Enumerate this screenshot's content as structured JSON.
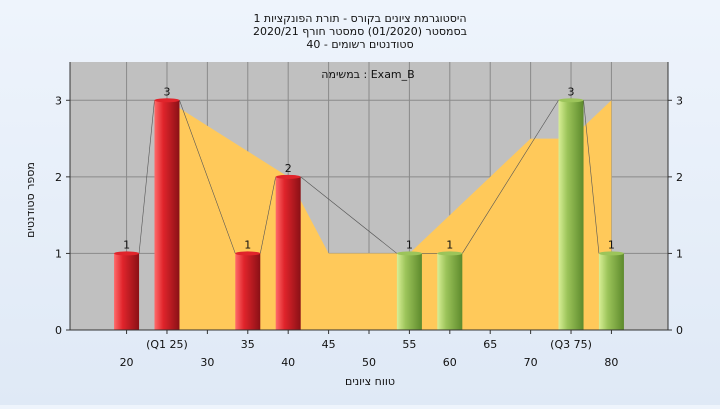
{
  "chart_data": {
    "type": "bar",
    "title_lines": [
      "היסטוגרמת ציונים בקורס - תורת הפונקציות 1",
      "בסמסטר  (01/2020)  סמסטר חורף  2020/21",
      "סטודנטים רשומים - 40"
    ],
    "annotation": "במשימה : Exam_B",
    "xlabel": "טווח ציונים",
    "ylabel": "מספר סטודנטים",
    "ylim": [
      0,
      3.5
    ],
    "yticks": [
      0,
      1,
      2,
      3
    ],
    "xlim": [
      13,
      87
    ],
    "xticks": [
      {
        "value": 20,
        "label": "20",
        "row": 1
      },
      {
        "value": 25,
        "label": "(Q1 25)",
        "row": 0
      },
      {
        "value": 30,
        "label": "30",
        "row": 1
      },
      {
        "value": 35,
        "label": "35",
        "row": 0
      },
      {
        "value": 40,
        "label": "40",
        "row": 1
      },
      {
        "value": 45,
        "label": "45",
        "row": 0
      },
      {
        "value": 50,
        "label": "50",
        "row": 1
      },
      {
        "value": 55,
        "label": "55",
        "row": 0
      },
      {
        "value": 60,
        "label": "60",
        "row": 1
      },
      {
        "value": 65,
        "label": "65",
        "row": 0
      },
      {
        "value": 70,
        "label": "70",
        "row": 1
      },
      {
        "value": 75,
        "label": "(Q3 75)",
        "row": 0
      },
      {
        "value": 80,
        "label": "80",
        "row": 1
      }
    ],
    "bars": [
      {
        "x": 20,
        "value": 1,
        "label": "1",
        "color": "red"
      },
      {
        "x": 25,
        "value": 3,
        "label": "3",
        "color": "red"
      },
      {
        "x": 35,
        "value": 1,
        "label": "1",
        "color": "red"
      },
      {
        "x": 40,
        "value": 2,
        "label": "2",
        "color": "red"
      },
      {
        "x": 55,
        "value": 1,
        "label": "1",
        "color": "green"
      },
      {
        "x": 60,
        "value": 1,
        "label": "1",
        "color": "green"
      },
      {
        "x": 75,
        "value": 3,
        "label": "3",
        "color": "green"
      },
      {
        "x": 80,
        "value": 1,
        "label": "1",
        "color": "green"
      }
    ],
    "area": {
      "color": "#ffc95a",
      "points": [
        [
          25,
          3
        ],
        [
          40,
          2
        ],
        [
          45,
          1
        ],
        [
          55,
          1
        ],
        [
          65,
          2
        ],
        [
          70,
          2.5
        ],
        [
          75,
          2.5
        ],
        [
          80,
          3
        ]
      ]
    },
    "colors": {
      "plot_bg": "#c0c0c0",
      "grid": "#8a8a8a",
      "red_light": "#ff6a6a",
      "red_mid": "#e0242b",
      "red_dark": "#8a1016",
      "green_light": "#d8ef96",
      "green_mid": "#9cc45a",
      "green_dark": "#5d8a2c"
    }
  }
}
